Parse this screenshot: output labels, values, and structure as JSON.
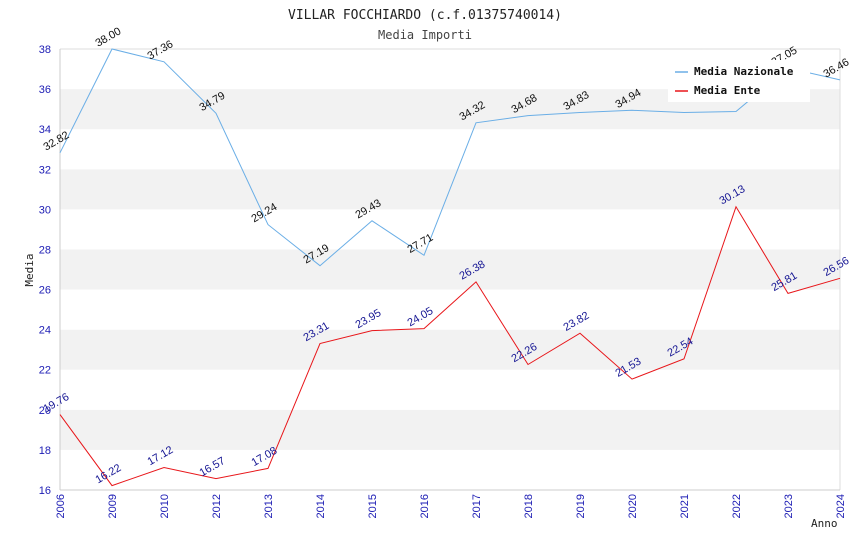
{
  "chart_data": {
    "type": "line",
    "title": "VILLAR FOCCHIARDO (c.f.01375740014)",
    "subtitle": "Media Importi",
    "xlabel": "Anno",
    "ylabel": "Media",
    "ylim": [
      16,
      38
    ],
    "yticks": [
      16,
      18,
      20,
      22,
      24,
      26,
      28,
      30,
      32,
      34,
      36,
      38
    ],
    "categories": [
      "2006",
      "2009",
      "2010",
      "2012",
      "2013",
      "2014",
      "2015",
      "2016",
      "2017",
      "2018",
      "2019",
      "2020",
      "2021",
      "2022",
      "2023",
      "2024"
    ],
    "grid": "horizontal bands",
    "legend_position": "top-right",
    "series": [
      {
        "name": "Media Nazionale",
        "color": "#6aaee6",
        "values": [
          32.82,
          38.0,
          37.36,
          34.79,
          29.24,
          27.19,
          29.43,
          27.71,
          34.32,
          34.68,
          34.83,
          34.94,
          34.83,
          34.88,
          37.05,
          36.46
        ],
        "labels": [
          "32.82",
          "38.00",
          "37.36",
          "34.79",
          "29.24",
          "27.19",
          "29.43",
          "27.71",
          "34.32",
          "34.68",
          "34.83",
          "34.94",
          "",
          "",
          "37.05",
          "36.46"
        ]
      },
      {
        "name": "Media Ente",
        "color": "#e8161a",
        "values": [
          19.76,
          16.22,
          17.12,
          16.57,
          17.08,
          23.31,
          23.95,
          24.05,
          26.38,
          22.26,
          23.82,
          21.53,
          22.54,
          30.13,
          25.81,
          26.56
        ],
        "labels": [
          "19.76",
          "16.22",
          "17.12",
          "16.57",
          "17.08",
          "23.31",
          "23.95",
          "24.05",
          "26.38",
          "22.26",
          "23.82",
          "21.53",
          "22.54",
          "30.13",
          "25.81",
          "26.56"
        ]
      }
    ]
  }
}
